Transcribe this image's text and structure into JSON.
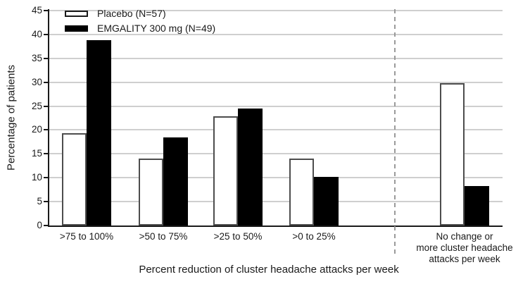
{
  "chart_data": {
    "type": "bar",
    "title": "",
    "xlabel": "Percent reduction of cluster headache attacks per week",
    "ylabel": "Percentage of patients",
    "ylim": [
      0,
      45
    ],
    "ytick_step": 5,
    "grid": true,
    "legend_position": "top-left",
    "categories": [
      ">75 to 100%",
      ">50 to 75%",
      ">25 to 50%",
      ">0 to 25%",
      "No change or\nmore cluster headache\nattacks per week"
    ],
    "series": [
      {
        "name": "Placebo (N=57)",
        "fill": "#ffffff",
        "outline": "#4d4d4d",
        "values": [
          19.3,
          14.0,
          22.8,
          14.0,
          29.8
        ]
      },
      {
        "name": "EMGALITY 300 mg (N=49)",
        "fill": "#000000",
        "outline": "#000000",
        "values": [
          38.8,
          18.4,
          24.5,
          10.2,
          8.2
        ]
      }
    ],
    "separator_after_category_index": 3,
    "colors": {
      "gridline": "#cfcfcf",
      "axis": "#1a1a1a",
      "separator": "#9a9a9a"
    }
  }
}
